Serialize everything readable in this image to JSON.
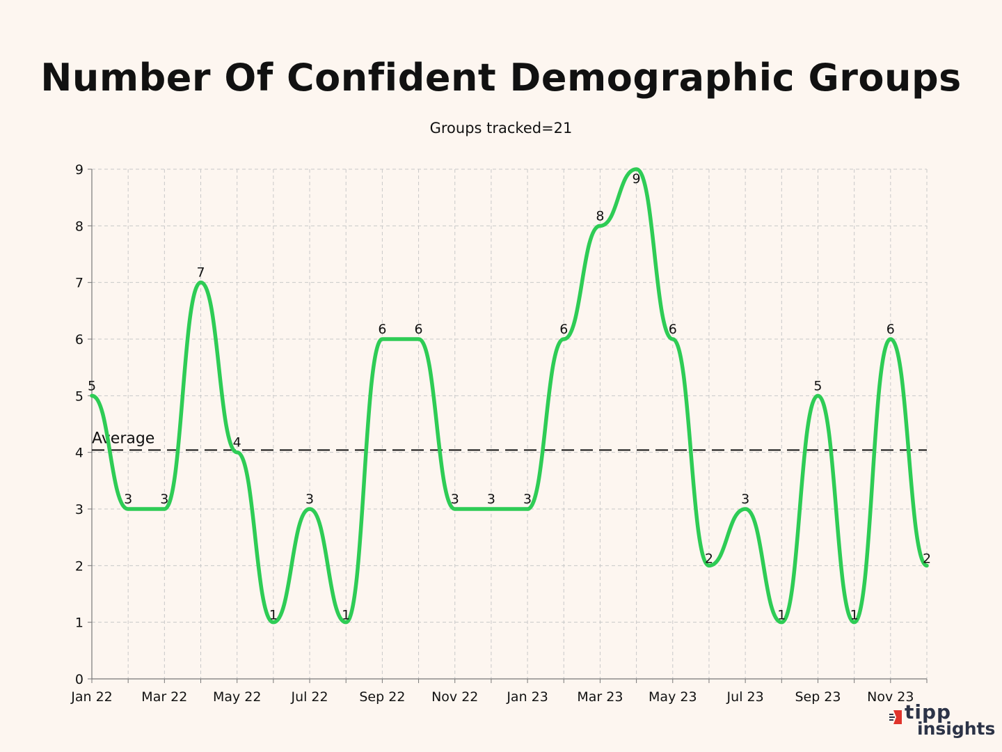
{
  "chart_data": {
    "type": "line",
    "title": "Number Of Confident Demographic Groups",
    "subtitle": "Groups tracked=21",
    "xlabel": "",
    "ylabel": "",
    "ylim": [
      0,
      9
    ],
    "yticks": [
      "0",
      "1",
      "2",
      "3",
      "4",
      "5",
      "6",
      "7",
      "8",
      "9"
    ],
    "categories": [
      "Jan 22",
      "Feb 22",
      "Mar 22",
      "Apr 22",
      "May 22",
      "Jun 22",
      "Jul 22",
      "Aug 22",
      "Sep 22",
      "Oct 22",
      "Nov 22",
      "Dec 22",
      "Jan 23",
      "Feb 23",
      "Mar 23",
      "Apr 23",
      "May 23",
      "Jun 23",
      "Jul 23",
      "Aug 23",
      "Sep 23",
      "Oct 23",
      "Nov 23",
      "Dec 23"
    ],
    "xtick_labels": [
      "Jan 22",
      "Mar 22",
      "May 22",
      "Jul 22",
      "Sep 22",
      "Nov 22",
      "Jan 23",
      "Mar 23",
      "May 23",
      "Jul 23",
      "Sep 23",
      "Nov 23"
    ],
    "series": [
      {
        "name": "Confident groups",
        "color": "#2ecc55",
        "values": [
          5,
          3,
          3,
          7,
          4,
          1,
          3,
          1,
          6,
          6,
          3,
          3,
          3,
          6,
          8,
          9,
          6,
          2,
          3,
          1,
          5,
          1,
          6,
          2
        ]
      }
    ],
    "data_labels": [
      "5",
      "3",
      "3",
      "7",
      "4",
      "1",
      "3",
      "1",
      "6",
      "6",
      "3",
      "3",
      "3",
      "6",
      "8",
      "9",
      "6",
      "2",
      "3",
      "1",
      "5",
      "1",
      "6",
      "2"
    ],
    "average": {
      "label": "Average",
      "value": 4.04,
      "style": "dashed",
      "color": "#111111"
    },
    "grid": true
  },
  "brand": {
    "line1": "tipp",
    "line2": "insights",
    "accent": "#e0342c",
    "text_color": "#2c3347"
  }
}
